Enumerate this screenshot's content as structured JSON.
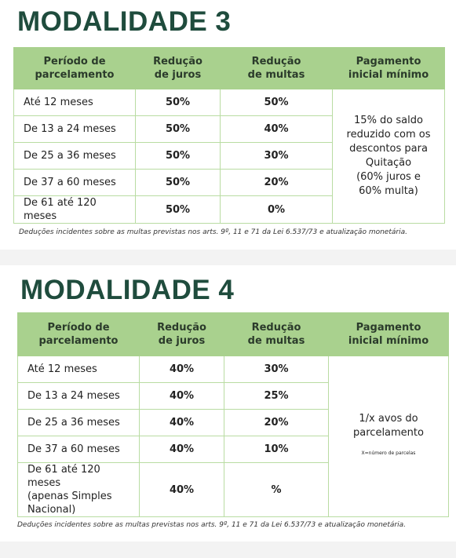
{
  "sections": [
    {
      "title": "MODALIDADE 3",
      "headers": [
        [
          "Período de",
          "parcelamento"
        ],
        [
          "Redução",
          "de juros"
        ],
        [
          "Redução",
          "de multas"
        ],
        [
          "Pagamento",
          "inicial mínimo"
        ]
      ],
      "rows": [
        [
          [
            "Até 12 meses"
          ],
          "50%",
          "50%"
        ],
        [
          [
            "De 13 a 24 meses"
          ],
          "50%",
          "40%"
        ],
        [
          [
            "De 25 a 36 meses"
          ],
          "50%",
          "30%"
        ],
        [
          [
            "De 37 a 60 meses"
          ],
          "50%",
          "20%"
        ],
        [
          [
            "De 61 até 120 meses"
          ],
          "50%",
          "0%"
        ]
      ],
      "payment": [
        "15% do saldo",
        "reduzido com os",
        "descontos para",
        "Quitação",
        "(60% juros e",
        "60% multa)"
      ],
      "footnote": "Deduções incidentes sobre as multas previstas nos arts. 9º, 11 e 71 da Lei 6.537/73 e atualização monetária."
    },
    {
      "title": "MODALIDADE 4",
      "headers": [
        [
          "Período de",
          "parcelamento"
        ],
        [
          "Redução",
          "de juros"
        ],
        [
          "Redução",
          "de multas"
        ],
        [
          "Pagamento",
          "inicial mínimo"
        ]
      ],
      "rows": [
        [
          [
            "Até 12 meses"
          ],
          "40%",
          "30%"
        ],
        [
          [
            "De 13 a 24 meses"
          ],
          "40%",
          "25%"
        ],
        [
          [
            "De 25 a 36 meses"
          ],
          "40%",
          "20%"
        ],
        [
          [
            "De 37 a 60 meses"
          ],
          "40%",
          "10%"
        ],
        [
          [
            "De 61 até 120 meses",
            "(apenas Simples",
            "Nacional)"
          ],
          "40%",
          "%"
        ]
      ],
      "payment": [
        "1/x avos do",
        "parcelamento"
      ],
      "payment_note": "X=número de parcelas",
      "footnote": "Deduções incidentes sobre as multas previstas nos arts. 9º, 11 e 71 da Lei 6.537/73 e atualização monetária."
    }
  ]
}
